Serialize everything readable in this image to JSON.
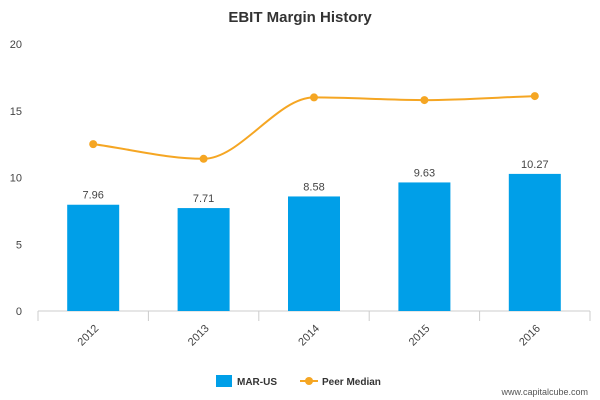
{
  "chart_data": {
    "type": "bar",
    "title": "EBIT Margin History",
    "categories": [
      "2012",
      "2013",
      "2014",
      "2015",
      "2016"
    ],
    "ylim": [
      0,
      20
    ],
    "yticks": [
      "0",
      "5",
      "10",
      "15",
      "20"
    ],
    "series": [
      {
        "name": "MAR-US",
        "type": "bar",
        "values": [
          7.96,
          7.71,
          8.58,
          9.63,
          10.27
        ],
        "labels": [
          "7.96",
          "7.71",
          "8.58",
          "9.63",
          "10.27"
        ],
        "color": "#009FE8"
      },
      {
        "name": "Peer Median",
        "type": "line",
        "values": [
          12.5,
          11.4,
          16.0,
          15.8,
          16.1
        ],
        "color": "#F5A623"
      }
    ],
    "grid": false,
    "legend": "bottom-center"
  },
  "watermark": "www.capitalcube.com"
}
